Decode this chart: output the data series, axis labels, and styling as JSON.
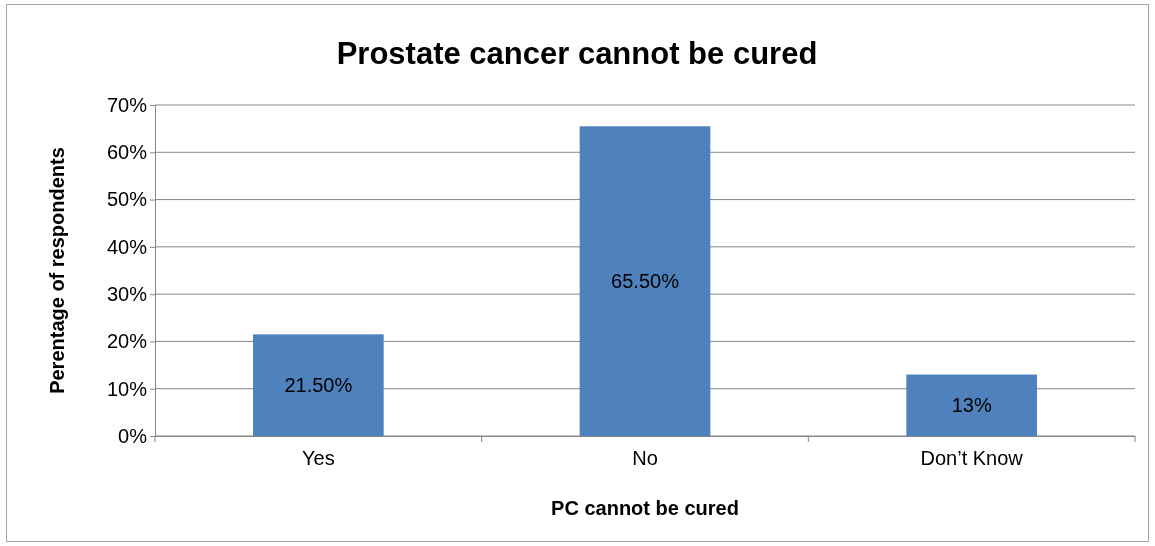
{
  "chart_data": {
    "type": "bar",
    "title": "Prostate cancer cannot be cured",
    "xlabel": "PC cannot be cured",
    "ylabel": "Perentage of respondents",
    "categories": [
      "Yes",
      "No",
      "Don’t Know"
    ],
    "values": [
      21.5,
      65.5,
      13
    ],
    "value_labels": [
      "21.50%",
      "65.50%",
      "13%"
    ],
    "color": "#4f81bd",
    "ylim": [
      0,
      70
    ],
    "yticks": [
      {
        "value": 0,
        "label": "0%"
      },
      {
        "value": 10,
        "label": "10%"
      },
      {
        "value": 20,
        "label": "20%"
      },
      {
        "value": 30,
        "label": "30%"
      },
      {
        "value": 40,
        "label": "40%"
      },
      {
        "value": 50,
        "label": "50%"
      },
      {
        "value": 60,
        "label": "60%"
      },
      {
        "value": 70,
        "label": "70%"
      }
    ],
    "grid": "y"
  }
}
